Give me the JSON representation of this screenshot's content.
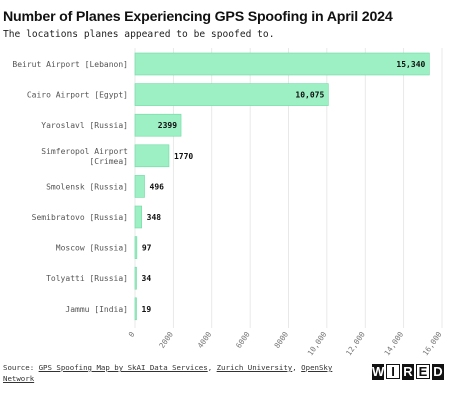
{
  "header": {
    "title": "Number of Planes Experiencing GPS Spoofing in April 2024",
    "subtitle": "The locations planes appeared to be spoofed to."
  },
  "chart_data": {
    "type": "bar",
    "orientation": "horizontal",
    "categories": [
      [
        "Beirut Airport [Lebanon]"
      ],
      [
        "Cairo Airport [Egypt]"
      ],
      [
        "Yaroslavl [Russia]"
      ],
      [
        "Simferopol Airport",
        "[Crimea]"
      ],
      [
        "Smolensk [Russia]"
      ],
      [
        "Semibratovo [Russia]"
      ],
      [
        "Moscow [Russia]"
      ],
      [
        "Tolyatti [Russia]"
      ],
      [
        "Jammu [India]"
      ]
    ],
    "values": [
      15340,
      10075,
      2399,
      1770,
      496,
      348,
      97,
      34,
      19
    ],
    "value_labels": [
      "15,340",
      "10,075",
      "2399",
      "1770",
      "496",
      "348",
      "97",
      "34",
      "19"
    ],
    "xlim": [
      0,
      16000
    ],
    "xticks": [
      0,
      2000,
      4000,
      6000,
      8000,
      10000,
      12000,
      14000,
      16000
    ],
    "xtick_labels": [
      "0",
      "2000",
      "4000",
      "6000",
      "8000",
      "10,000",
      "12,000",
      "14,000",
      "16,000"
    ],
    "grid": true,
    "bar_color": "#9cf0c4",
    "bar_stroke": "#6fd9a3"
  },
  "footer": {
    "source_prefix": "Source: ",
    "link1": "GPS Spoofing Map by SkAI Data Services",
    "sep1": ", ",
    "link2": "Zurich University",
    "sep2": ", ",
    "link3": "OpenSky Network"
  },
  "logo": {
    "letters": [
      "W",
      "I",
      "R",
      "E",
      "D"
    ]
  }
}
